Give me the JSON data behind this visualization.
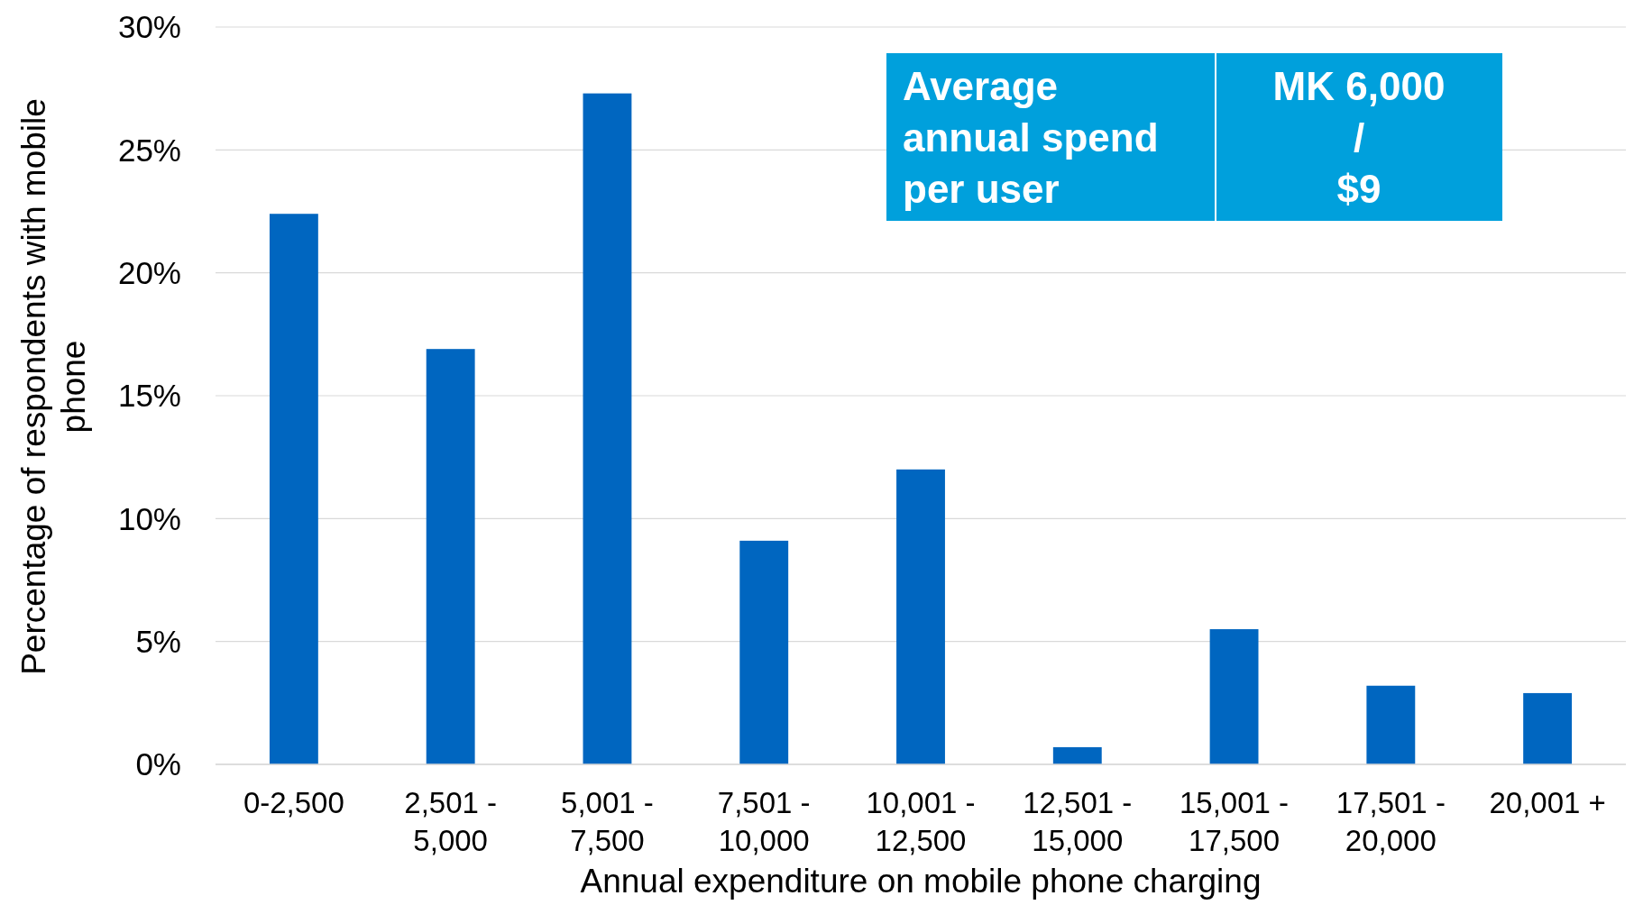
{
  "chart_data": {
    "type": "bar",
    "xlabel": "Annual expenditure on mobile phone charging",
    "ylabel": "Percentage of respondents with mobile\nphone",
    "categories": [
      "0-2,500",
      "2,501 -\n5,000",
      "5,001 -\n7,500",
      "7,501 -\n10,000",
      "10,001 -\n12,500",
      "12,501 -\n15,000",
      "15,001 -\n17,500",
      "17,501 -\n20,000",
      "20,001 +"
    ],
    "values": [
      22.4,
      16.9,
      27.3,
      9.1,
      12.0,
      0.7,
      5.5,
      3.2,
      2.9
    ],
    "color": "#0066c0",
    "ylim": [
      0,
      30
    ],
    "yticks": [
      {
        "value": 0,
        "label": "0%"
      },
      {
        "value": 5,
        "label": "5%"
      },
      {
        "value": 10,
        "label": "10%"
      },
      {
        "value": 15,
        "label": "15%"
      },
      {
        "value": 20,
        "label": "20%"
      },
      {
        "value": 25,
        "label": "25%"
      },
      {
        "value": 30,
        "label": "30%"
      }
    ],
    "grid": "y",
    "annotations": [
      "Average\nannual spend\nper user",
      "MK 6,000\n/\n$9"
    ]
  }
}
